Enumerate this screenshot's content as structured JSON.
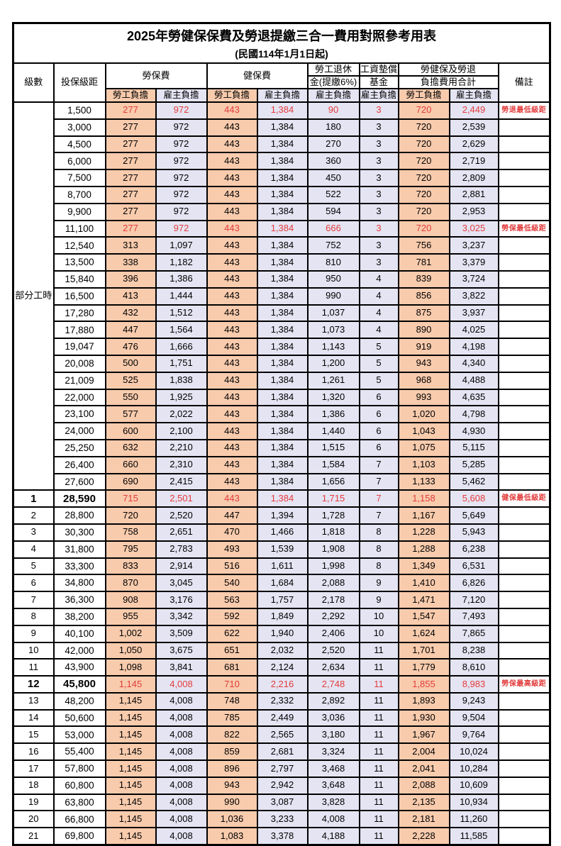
{
  "title": "2025年勞健保保費及勞退提繳三合一費用對照參考用表",
  "subtitle": "(民國114年1月1日起)",
  "columns": {
    "level": "級數",
    "bracket": "投保級距",
    "labor_insurance": "勞保費",
    "health_insurance": "健保費",
    "pension_line1": "勞工退休",
    "pension_line2": "金(提繳6%)",
    "wage_fund_line1": "工資墊償",
    "wage_fund_line2": "基金",
    "total_line1": "勞健保及勞退",
    "total_line2": "負擔費用合計",
    "notes": "備註",
    "employee_share": "勞工負擔",
    "employer_share": "雇主負擔"
  },
  "part_time_label": "部分工時",
  "colors": {
    "employee_bg": "#F8CBAD",
    "employer_bg": "#E5E4F3",
    "highlight_red": "#E23C3C",
    "grid_border": "#000000"
  },
  "rows": [
    {
      "level": "部分工時",
      "rowspan": 23,
      "bracket": "1,500",
      "values": [
        "277",
        "972",
        "443",
        "1,384",
        "90",
        "3",
        "720",
        "2,449"
      ],
      "note": "勞退最低級距",
      "highlight": true
    },
    {
      "bracket": "3,000",
      "values": [
        "277",
        "972",
        "443",
        "1,384",
        "180",
        "3",
        "720",
        "2,539"
      ],
      "note": "",
      "highlight": false
    },
    {
      "bracket": "4,500",
      "values": [
        "277",
        "972",
        "443",
        "1,384",
        "270",
        "3",
        "720",
        "2,629"
      ],
      "note": "",
      "highlight": false
    },
    {
      "bracket": "6,000",
      "values": [
        "277",
        "972",
        "443",
        "1,384",
        "360",
        "3",
        "720",
        "2,719"
      ],
      "note": "",
      "highlight": false
    },
    {
      "bracket": "7,500",
      "values": [
        "277",
        "972",
        "443",
        "1,384",
        "450",
        "3",
        "720",
        "2,809"
      ],
      "note": "",
      "highlight": false
    },
    {
      "bracket": "8,700",
      "values": [
        "277",
        "972",
        "443",
        "1,384",
        "522",
        "3",
        "720",
        "2,881"
      ],
      "note": "",
      "highlight": false
    },
    {
      "bracket": "9,900",
      "values": [
        "277",
        "972",
        "443",
        "1,384",
        "594",
        "3",
        "720",
        "2,953"
      ],
      "note": "",
      "highlight": false
    },
    {
      "bracket": "11,100",
      "values": [
        "277",
        "972",
        "443",
        "1,384",
        "666",
        "3",
        "720",
        "3,025"
      ],
      "note": "勞保最低級距",
      "highlight": true
    },
    {
      "bracket": "12,540",
      "values": [
        "313",
        "1,097",
        "443",
        "1,384",
        "752",
        "3",
        "756",
        "3,237"
      ],
      "note": "",
      "highlight": false
    },
    {
      "bracket": "13,500",
      "values": [
        "338",
        "1,182",
        "443",
        "1,384",
        "810",
        "3",
        "781",
        "3,379"
      ],
      "note": "",
      "highlight": false
    },
    {
      "bracket": "15,840",
      "values": [
        "396",
        "1,386",
        "443",
        "1,384",
        "950",
        "4",
        "839",
        "3,724"
      ],
      "note": "",
      "highlight": false
    },
    {
      "bracket": "16,500",
      "values": [
        "413",
        "1,444",
        "443",
        "1,384",
        "990",
        "4",
        "856",
        "3,822"
      ],
      "note": "",
      "highlight": false
    },
    {
      "bracket": "17,280",
      "values": [
        "432",
        "1,512",
        "443",
        "1,384",
        "1,037",
        "4",
        "875",
        "3,937"
      ],
      "note": "",
      "highlight": false
    },
    {
      "bracket": "17,880",
      "values": [
        "447",
        "1,564",
        "443",
        "1,384",
        "1,073",
        "4",
        "890",
        "4,025"
      ],
      "note": "",
      "highlight": false
    },
    {
      "bracket": "19,047",
      "values": [
        "476",
        "1,666",
        "443",
        "1,384",
        "1,143",
        "5",
        "919",
        "4,198"
      ],
      "note": "",
      "highlight": false
    },
    {
      "bracket": "20,008",
      "values": [
        "500",
        "1,751",
        "443",
        "1,384",
        "1,200",
        "5",
        "943",
        "4,340"
      ],
      "note": "",
      "highlight": false
    },
    {
      "bracket": "21,009",
      "values": [
        "525",
        "1,838",
        "443",
        "1,384",
        "1,261",
        "5",
        "968",
        "4,488"
      ],
      "note": "",
      "highlight": false
    },
    {
      "bracket": "22,000",
      "values": [
        "550",
        "1,925",
        "443",
        "1,384",
        "1,320",
        "6",
        "993",
        "4,635"
      ],
      "note": "",
      "highlight": false
    },
    {
      "bracket": "23,100",
      "values": [
        "577",
        "2,022",
        "443",
        "1,384",
        "1,386",
        "6",
        "1,020",
        "4,798"
      ],
      "note": "",
      "highlight": false
    },
    {
      "bracket": "24,000",
      "values": [
        "600",
        "2,100",
        "443",
        "1,384",
        "1,440",
        "6",
        "1,043",
        "4,930"
      ],
      "note": "",
      "highlight": false
    },
    {
      "bracket": "25,250",
      "values": [
        "632",
        "2,210",
        "443",
        "1,384",
        "1,515",
        "6",
        "1,075",
        "5,115"
      ],
      "note": "",
      "highlight": false
    },
    {
      "bracket": "26,400",
      "values": [
        "660",
        "2,310",
        "443",
        "1,384",
        "1,584",
        "7",
        "1,103",
        "5,285"
      ],
      "note": "",
      "highlight": false
    },
    {
      "bracket": "27,600",
      "values": [
        "690",
        "2,415",
        "443",
        "1,384",
        "1,656",
        "7",
        "1,133",
        "5,462"
      ],
      "note": "",
      "highlight": false
    },
    {
      "level": "1",
      "bracket": "28,590",
      "values": [
        "715",
        "2,501",
        "443",
        "1,384",
        "1,715",
        "7",
        "1,158",
        "5,608"
      ],
      "note": "健保最低級距",
      "highlight": true,
      "emph": true
    },
    {
      "level": "2",
      "bracket": "28,800",
      "values": [
        "720",
        "2,520",
        "447",
        "1,394",
        "1,728",
        "7",
        "1,167",
        "5,649"
      ],
      "note": "",
      "highlight": false
    },
    {
      "level": "3",
      "bracket": "30,300",
      "values": [
        "758",
        "2,651",
        "470",
        "1,466",
        "1,818",
        "8",
        "1,228",
        "5,943"
      ],
      "note": "",
      "highlight": false
    },
    {
      "level": "4",
      "bracket": "31,800",
      "values": [
        "795",
        "2,783",
        "493",
        "1,539",
        "1,908",
        "8",
        "1,288",
        "6,238"
      ],
      "note": "",
      "highlight": false
    },
    {
      "level": "5",
      "bracket": "33,300",
      "values": [
        "833",
        "2,914",
        "516",
        "1,611",
        "1,998",
        "8",
        "1,349",
        "6,531"
      ],
      "note": "",
      "highlight": false
    },
    {
      "level": "6",
      "bracket": "34,800",
      "values": [
        "870",
        "3,045",
        "540",
        "1,684",
        "2,088",
        "9",
        "1,410",
        "6,826"
      ],
      "note": "",
      "highlight": false
    },
    {
      "level": "7",
      "bracket": "36,300",
      "values": [
        "908",
        "3,176",
        "563",
        "1,757",
        "2,178",
        "9",
        "1,471",
        "7,120"
      ],
      "note": "",
      "highlight": false
    },
    {
      "level": "8",
      "bracket": "38,200",
      "values": [
        "955",
        "3,342",
        "592",
        "1,849",
        "2,292",
        "10",
        "1,547",
        "7,493"
      ],
      "note": "",
      "highlight": false
    },
    {
      "level": "9",
      "bracket": "40,100",
      "values": [
        "1,002",
        "3,509",
        "622",
        "1,940",
        "2,406",
        "10",
        "1,624",
        "7,865"
      ],
      "note": "",
      "highlight": false
    },
    {
      "level": "10",
      "bracket": "42,000",
      "values": [
        "1,050",
        "3,675",
        "651",
        "2,032",
        "2,520",
        "11",
        "1,701",
        "8,238"
      ],
      "note": "",
      "highlight": false
    },
    {
      "level": "11",
      "bracket": "43,900",
      "values": [
        "1,098",
        "3,841",
        "681",
        "2,124",
        "2,634",
        "11",
        "1,779",
        "8,610"
      ],
      "note": "",
      "highlight": false
    },
    {
      "level": "12",
      "bracket": "45,800",
      "values": [
        "1,145",
        "4,008",
        "710",
        "2,216",
        "2,748",
        "11",
        "1,855",
        "8,983"
      ],
      "note": "勞保最高級距",
      "highlight": true,
      "emph": true
    },
    {
      "level": "13",
      "bracket": "48,200",
      "values": [
        "1,145",
        "4,008",
        "748",
        "2,332",
        "2,892",
        "11",
        "1,893",
        "9,243"
      ],
      "note": "",
      "highlight": false
    },
    {
      "level": "14",
      "bracket": "50,600",
      "values": [
        "1,145",
        "4,008",
        "785",
        "2,449",
        "3,036",
        "11",
        "1,930",
        "9,504"
      ],
      "note": "",
      "highlight": false
    },
    {
      "level": "15",
      "bracket": "53,000",
      "values": [
        "1,145",
        "4,008",
        "822",
        "2,565",
        "3,180",
        "11",
        "1,967",
        "9,764"
      ],
      "note": "",
      "highlight": false
    },
    {
      "level": "16",
      "bracket": "55,400",
      "values": [
        "1,145",
        "4,008",
        "859",
        "2,681",
        "3,324",
        "11",
        "2,004",
        "10,024"
      ],
      "note": "",
      "highlight": false
    },
    {
      "level": "17",
      "bracket": "57,800",
      "values": [
        "1,145",
        "4,008",
        "896",
        "2,797",
        "3,468",
        "11",
        "2,041",
        "10,284"
      ],
      "note": "",
      "highlight": false
    },
    {
      "level": "18",
      "bracket": "60,800",
      "values": [
        "1,145",
        "4,008",
        "943",
        "2,942",
        "3,648",
        "11",
        "2,088",
        "10,609"
      ],
      "note": "",
      "highlight": false
    },
    {
      "level": "19",
      "bracket": "63,800",
      "values": [
        "1,145",
        "4,008",
        "990",
        "3,087",
        "3,828",
        "11",
        "2,135",
        "10,934"
      ],
      "note": "",
      "highlight": false
    },
    {
      "level": "20",
      "bracket": "66,800",
      "values": [
        "1,145",
        "4,008",
        "1,036",
        "3,233",
        "4,008",
        "11",
        "2,181",
        "11,260"
      ],
      "note": "",
      "highlight": false
    },
    {
      "level": "21",
      "bracket": "69,800",
      "values": [
        "1,145",
        "4,008",
        "1,083",
        "3,378",
        "4,188",
        "11",
        "2,228",
        "11,585"
      ],
      "note": "",
      "highlight": false
    }
  ]
}
